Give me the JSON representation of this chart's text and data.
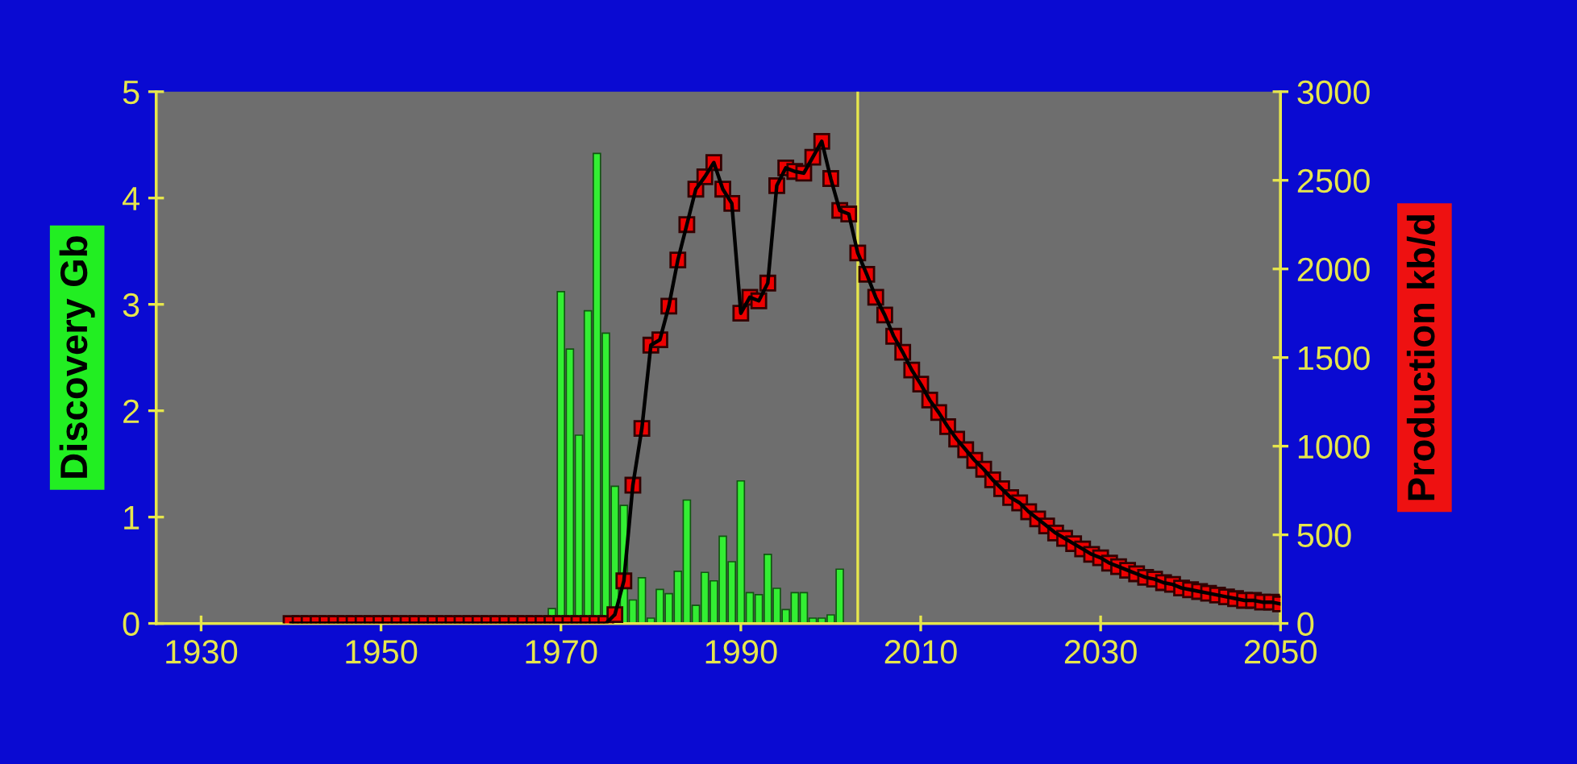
{
  "chart_data": {
    "type": "bar",
    "ylabel": "Discovery Gb",
    "y2label": "Production kb/d",
    "xlim": [
      1925,
      2050
    ],
    "xticks": [
      1930,
      1950,
      1970,
      1990,
      2010,
      2030,
      2050
    ],
    "ylim": [
      0,
      5
    ],
    "yticks": [
      0,
      1,
      2,
      3,
      4,
      5
    ],
    "y2lim": [
      0,
      3000
    ],
    "y2ticks": [
      0,
      500,
      1000,
      1500,
      2000,
      2500,
      3000
    ],
    "grid": false,
    "legend": false,
    "marker": "square",
    "line_style": "solid",
    "ref_lines": [
      {
        "axis": "x",
        "value": 2003,
        "color": "#e6e64c"
      }
    ],
    "series": [
      {
        "color": "#33ee33",
        "x": [
          1969,
          1970,
          1971,
          1972,
          1973,
          1974,
          1975,
          1976,
          1977,
          1978,
          1979,
          1980,
          1981,
          1982,
          1983,
          1984,
          1985,
          1986,
          1987,
          1988,
          1989,
          1990,
          1991,
          1992,
          1993,
          1994,
          1995,
          1996,
          1997,
          1998,
          1999,
          2000,
          2001
        ],
        "values": [
          0.14,
          3.12,
          2.58,
          1.77,
          2.94,
          4.42,
          2.73,
          1.29,
          1.11,
          0.22,
          0.43,
          0.05,
          0.32,
          0.28,
          0.49,
          1.16,
          0.17,
          0.48,
          0.4,
          0.82,
          0.58,
          1.34,
          0.29,
          0.27,
          0.65,
          0.33,
          0.13,
          0.29,
          0.29,
          0.05,
          0.05,
          0.08,
          0.51
        ]
      },
      {
        "type": "line",
        "axis": "y2",
        "color": "#ee0000",
        "x": [
          1940,
          1941,
          1942,
          1943,
          1944,
          1945,
          1946,
          1947,
          1948,
          1949,
          1950,
          1951,
          1952,
          1953,
          1954,
          1955,
          1956,
          1957,
          1958,
          1959,
          1960,
          1961,
          1962,
          1963,
          1964,
          1965,
          1966,
          1967,
          1968,
          1969,
          1970,
          1971,
          1972,
          1973,
          1974,
          1975,
          1976,
          1977,
          1978,
          1979,
          1980,
          1981,
          1982,
          1983,
          1984,
          1985,
          1986,
          1987,
          1988,
          1989,
          1990,
          1991,
          1992,
          1993,
          1994,
          1995,
          1996,
          1997,
          1998,
          1999,
          2000,
          2001,
          2002,
          2003,
          2004,
          2005,
          2006,
          2007,
          2008,
          2009,
          2010,
          2011,
          2012,
          2013,
          2014,
          2015,
          2016,
          2017,
          2018,
          2019,
          2020,
          2021,
          2022,
          2023,
          2024,
          2025,
          2026,
          2027,
          2028,
          2029,
          2030,
          2031,
          2032,
          2033,
          2034,
          2035,
          2036,
          2037,
          2038,
          2039,
          2040,
          2041,
          2042,
          2043,
          2044,
          2045,
          2046,
          2047,
          2048,
          2049,
          2050
        ],
        "values": [
          0,
          0,
          0,
          0,
          0,
          0,
          0,
          0,
          0,
          0,
          0,
          0,
          0,
          0,
          0,
          0,
          0,
          0,
          0,
          0,
          0,
          0,
          0,
          0,
          0,
          0,
          0,
          0,
          0,
          0,
          0,
          0,
          0,
          0,
          0,
          0,
          50,
          240,
          780,
          1100,
          1570,
          1600,
          1790,
          2050,
          2250,
          2450,
          2520,
          2600,
          2450,
          2370,
          1750,
          1840,
          1820,
          1920,
          2470,
          2570,
          2550,
          2540,
          2630,
          2720,
          2510,
          2330,
          2310,
          2090,
          1970,
          1840,
          1740,
          1620,
          1530,
          1430,
          1350,
          1260,
          1190,
          1110,
          1040,
          980,
          920,
          870,
          810,
          760,
          710,
          680,
          630,
          590,
          550,
          510,
          480,
          450,
          420,
          390,
          370,
          340,
          320,
          300,
          280,
          260,
          250,
          230,
          220,
          200,
          190,
          180,
          170,
          160,
          150,
          140,
          130,
          130,
          120,
          120,
          110
        ]
      }
    ]
  }
}
